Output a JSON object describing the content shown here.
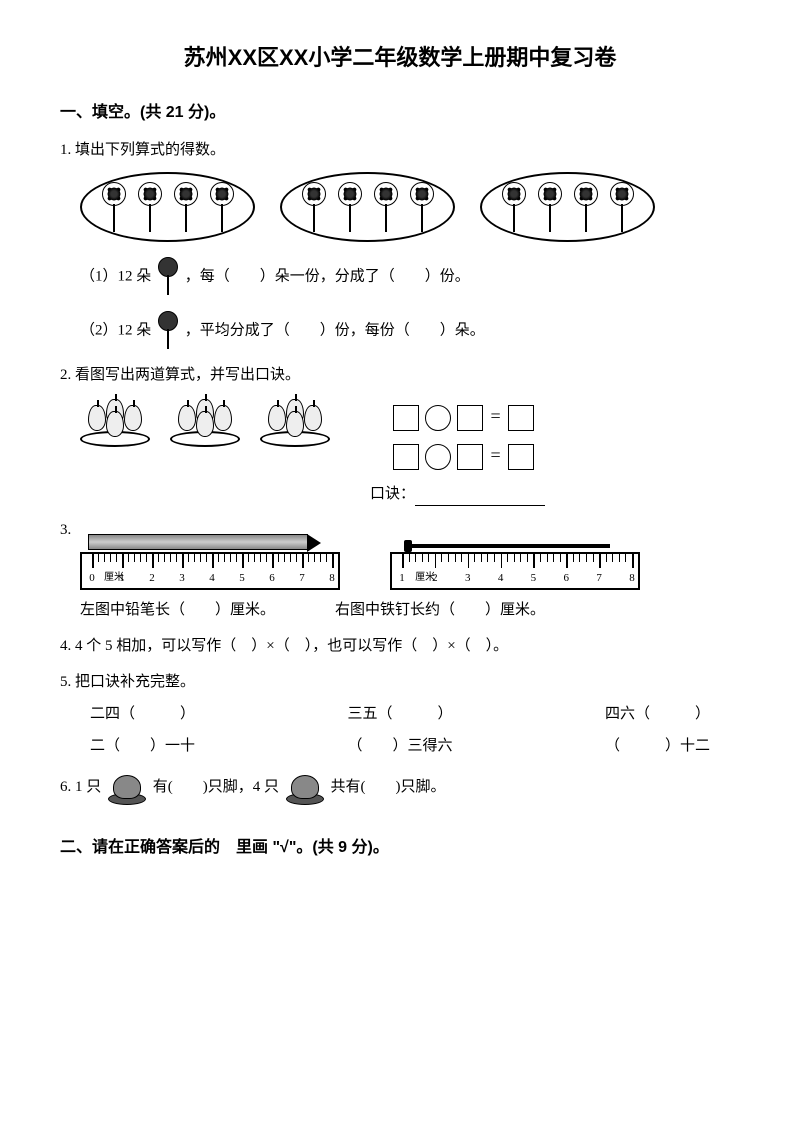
{
  "title": "苏州XX区XX小学二年级数学上册期中复习卷",
  "section1": {
    "head": "一、填空。(共 21 分)。",
    "q1": {
      "stem": "1. 填出下列算式的得数。",
      "line1a": "（1）12 朵",
      "line1b": "，每（　　）朵一份，分成了（　　）份。",
      "line2a": "（2）12 朵",
      "line2b": "，平均分成了（　　）份，每份（　　）朵。"
    },
    "q2": {
      "stem": "2. 看图写出两道算式，并写出口诀。",
      "koujue": "口诀："
    },
    "q3": {
      "num": "3.",
      "left": "左图中铅笔长（　　）厘米。",
      "right": "右图中铁钉长约（　　）厘米。",
      "ruler1_labels": [
        "0",
        "1",
        "2",
        "3",
        "4",
        "5",
        "6",
        "7",
        "8"
      ],
      "ruler1_unit": "厘米",
      "ruler2_labels": [
        "1",
        "2",
        "3",
        "4",
        "5",
        "6",
        "7",
        "8"
      ],
      "ruler2_unit": "厘米"
    },
    "q4": "4. 4 个 5 相加，可以写作（　）×（　），也可以写作（　）×（　）。",
    "q5": {
      "stem": "5. 把口诀补充完整。",
      "row1": [
        "二四（　　　）",
        "三五（　　　）",
        "四六（　　　）"
      ],
      "row2": [
        "二（　　）一十",
        "（　　）三得六",
        "（　　　）十二"
      ]
    },
    "q6": {
      "a": "6. 1 只",
      "b": "有(　　)只脚，4 只",
      "c": "共有(　　)只脚。"
    }
  },
  "section2": {
    "head": "二、请在正确答案后的　里画 \"√\"。(共 9 分)。"
  }
}
